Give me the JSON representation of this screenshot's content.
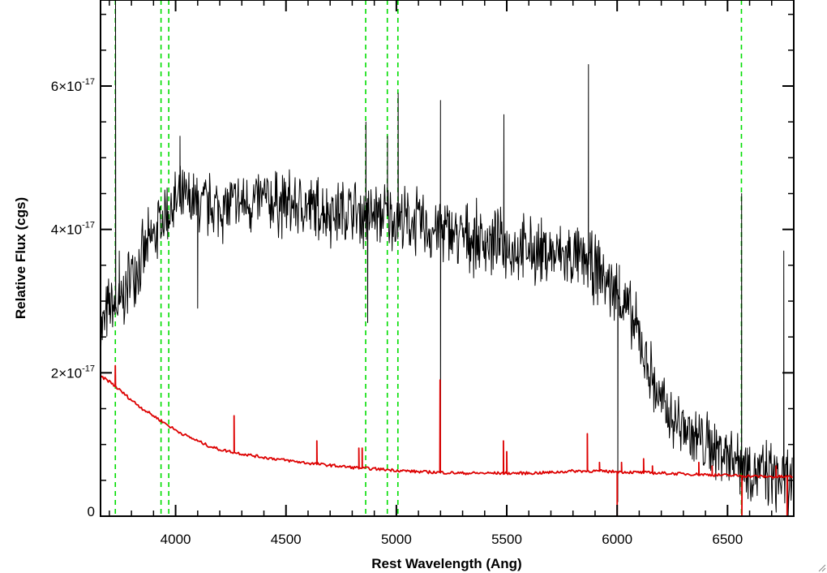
{
  "chart_data": {
    "type": "line",
    "xlabel": "Rest Wavelength (Ang)",
    "ylabel": "Relative Flux (cgs)",
    "xlim": [
      3660,
      6800
    ],
    "ylim": [
      0,
      7.2e-17
    ],
    "x_ticks": [
      {
        "value": 4000,
        "label": "4000"
      },
      {
        "value": 4500,
        "label": "4500"
      },
      {
        "value": 5000,
        "label": "5000"
      },
      {
        "value": 5500,
        "label": "5500"
      },
      {
        "value": 6000,
        "label": "6000"
      },
      {
        "value": 6500,
        "label": "6500"
      }
    ],
    "y_ticks": [
      {
        "value": 0,
        "base": "0",
        "exp": ""
      },
      {
        "value": 2e-17,
        "base": "2×10",
        "exp": "-17"
      },
      {
        "value": 4e-17,
        "base": "4×10",
        "exp": "-17"
      },
      {
        "value": 6e-17,
        "base": "6×10",
        "exp": "-17"
      }
    ],
    "reference_lines": [
      3727,
      3934,
      3969,
      4861,
      4959,
      5007,
      6563
    ],
    "reference_line_color": "#00dd00",
    "series": [
      {
        "color": "#000000",
        "x": [
          3665,
          3700,
          3727,
          3760,
          3800,
          3850,
          3900,
          3950,
          4000,
          4050,
          4100,
          4200,
          4300,
          4400,
          4500,
          4600,
          4700,
          4800,
          4850,
          4900,
          4950,
          5000,
          5050,
          5100,
          5150,
          5200,
          5250,
          5300,
          5400,
          5500,
          5600,
          5700,
          5800,
          5850,
          5900,
          5950,
          6000,
          6050,
          6100,
          6150,
          6200,
          6250,
          6300,
          6350,
          6400,
          6450,
          6500,
          6550,
          6600,
          6650,
          6700,
          6750,
          6790
        ],
        "y": [
          2.6e-17,
          2.9e-17,
          2.9e-17,
          3e-17,
          3.4e-17,
          3.6e-17,
          3.9e-17,
          4.2e-17,
          4.35e-17,
          4.4e-17,
          4.35e-17,
          4.3e-17,
          4.35e-17,
          4.4e-17,
          4.35e-17,
          4.3e-17,
          4.25e-17,
          4.25e-17,
          4.2e-17,
          4.2e-17,
          4.2e-17,
          4.15e-17,
          4.1e-17,
          4.1e-17,
          4e-17,
          4e-17,
          3.95e-17,
          3.9e-17,
          3.85e-17,
          3.75e-17,
          3.7e-17,
          3.65e-17,
          3.6e-17,
          3.55e-17,
          3.45e-17,
          3.3e-17,
          3.1e-17,
          2.85e-17,
          2.5e-17,
          2e-17,
          1.55e-17,
          1.35e-17,
          1.25e-17,
          1.1e-17,
          1e-17,
          9.5e-18,
          9e-18,
          8e-18,
          7e-18,
          6e-18,
          5.5e-18,
          5e-18,
          5e-18
        ],
        "noise": 3.8e-18,
        "spikes": [
          {
            "x": 3728,
            "y": 7.2e-17
          },
          {
            "x": 3745,
            "y": 3.7e-17
          },
          {
            "x": 4020,
            "y": 5.3e-17
          },
          {
            "x": 4100,
            "y": 2.9e-17
          },
          {
            "x": 4862,
            "y": 5.5e-17
          },
          {
            "x": 4870,
            "y": 2.7e-17
          },
          {
            "x": 4960,
            "y": 5.3e-17
          },
          {
            "x": 5008,
            "y": 5.9e-17
          },
          {
            "x": 5200,
            "y": 5.8e-17
          },
          {
            "x": 5200,
            "y": 6e-18
          },
          {
            "x": 5487,
            "y": 5.6e-17
          },
          {
            "x": 5870,
            "y": 6.3e-17
          },
          {
            "x": 6003,
            "y": 2e-18
          },
          {
            "x": 6010,
            "y": 3.5e-17
          },
          {
            "x": 6564,
            "y": 4.5e-17
          },
          {
            "x": 6570,
            "y": 5e-18
          },
          {
            "x": 6755,
            "y": 3.7e-17
          }
        ]
      },
      {
        "color": "#dd0000",
        "x": [
          3660,
          3700,
          3750,
          3800,
          3850,
          3900,
          3950,
          4000,
          4050,
          4100,
          4150,
          4200,
          4250,
          4300,
          4400,
          4500,
          4600,
          4700,
          4800,
          4900,
          5000,
          5100,
          5200,
          5300,
          5400,
          5500,
          5600,
          5700,
          5800,
          5900,
          6000,
          6100,
          6200,
          6300,
          6400,
          6500,
          6600,
          6700,
          6790
        ],
        "y": [
          1.95e-17,
          1.88e-17,
          1.75e-17,
          1.62e-17,
          1.5e-17,
          1.4e-17,
          1.3e-17,
          1.2e-17,
          1.12e-17,
          1.05e-17,
          9.8e-18,
          9.3e-18,
          9e-18,
          8.7e-18,
          8.2e-18,
          7.8e-18,
          7.4e-18,
          7.1e-18,
          6.8e-18,
          6.6e-18,
          6.4e-18,
          6.2e-18,
          6.1e-18,
          6e-18,
          6e-18,
          6e-18,
          6e-18,
          6.1e-18,
          6.3e-18,
          6.3e-18,
          6.2e-18,
          6.1e-18,
          6e-18,
          5.9e-18,
          5.8e-18,
          5.7e-18,
          5.6e-18,
          5.5e-18,
          5.5e-18
        ],
        "spikes": [
          {
            "x": 3727,
            "y": 2.1e-17
          },
          {
            "x": 4265,
            "y": 1.4e-17
          },
          {
            "x": 4640,
            "y": 1.05e-17
          },
          {
            "x": 4830,
            "y": 9.5e-18
          },
          {
            "x": 4845,
            "y": 9.5e-18
          },
          {
            "x": 5198,
            "y": 1.9e-17
          },
          {
            "x": 5485,
            "y": 1.05e-17
          },
          {
            "x": 5500,
            "y": 9e-18
          },
          {
            "x": 5865,
            "y": 1.15e-17
          },
          {
            "x": 5920,
            "y": 7.5e-18
          },
          {
            "x": 6000,
            "y": 0.0
          },
          {
            "x": 6020,
            "y": 7.5e-18
          },
          {
            "x": 6120,
            "y": 8e-18
          },
          {
            "x": 6160,
            "y": 7e-18
          },
          {
            "x": 6370,
            "y": 7.5e-18
          },
          {
            "x": 6430,
            "y": 7e-18
          },
          {
            "x": 6565,
            "y": 0.0
          },
          {
            "x": 6720,
            "y": 7e-18
          },
          {
            "x": 6770,
            "y": 0.0
          }
        ]
      }
    ]
  }
}
